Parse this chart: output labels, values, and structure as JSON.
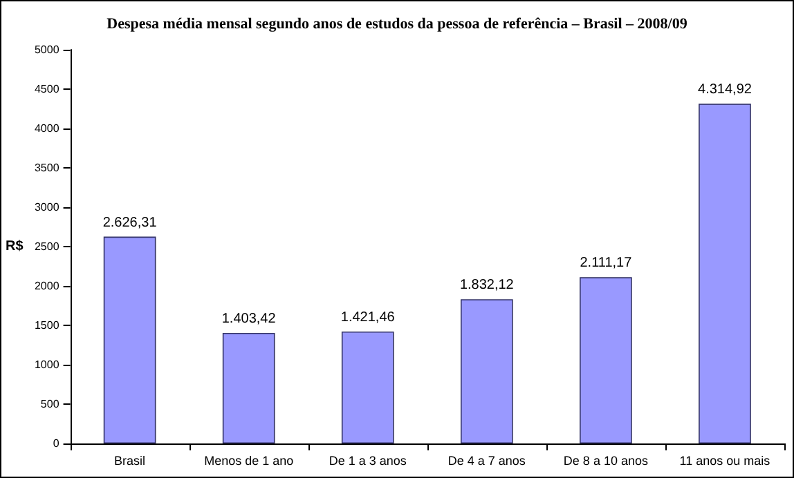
{
  "chart_data": {
    "type": "bar",
    "title": "Despesa média mensal segundo anos de estudos da pessoa de referência – Brasil – 2008/09",
    "ylabel": "R$",
    "categories": [
      "Brasil",
      "Menos de 1 ano",
      "De 1 a 3 anos",
      "De 4 a 7 anos",
      "De 8 a 10 anos",
      "11 anos ou mais"
    ],
    "values": [
      2626.31,
      1403.42,
      1421.46,
      1832.12,
      2111.17,
      4314.92
    ],
    "value_labels": [
      "2.626,31",
      "1.403,42",
      "1.421,46",
      "1.832,12",
      "2.111,17",
      "4.314,92"
    ],
    "color": "#9999ff",
    "ylim": [
      0,
      5000
    ],
    "yticks": [
      0,
      500,
      1000,
      1500,
      2000,
      2500,
      3000,
      3500,
      4000,
      4500,
      5000
    ],
    "grid": false
  }
}
